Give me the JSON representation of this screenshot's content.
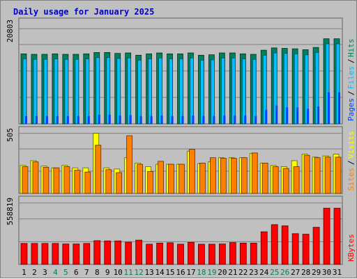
{
  "chart_data": {
    "type": "bar",
    "title": "Daily usage for January 2025",
    "days": [
      "1",
      "2",
      "3",
      "4",
      "5",
      "6",
      "7",
      "8",
      "9",
      "10",
      "11",
      "12",
      "13",
      "14",
      "15",
      "16",
      "17",
      "18",
      "19",
      "20",
      "21",
      "22",
      "23",
      "24",
      "25",
      "26",
      "27",
      "28",
      "29",
      "30",
      "31"
    ],
    "weekend_days": [
      "4",
      "5",
      "11",
      "12",
      "18",
      "19",
      "25",
      "26"
    ],
    "panels": [
      {
        "id": "hits_files_pages",
        "ymax_label": "20803",
        "ymax": 20803,
        "series_labels": [
          "Pages",
          "Files",
          "Hits"
        ],
        "series": [
          {
            "name": "Hits",
            "values": [
              15300,
              15200,
              15200,
              15300,
              15200,
              15200,
              15300,
              15600,
              15600,
              15400,
              15500,
              15000,
              15300,
              15500,
              15300,
              15300,
              15500,
              15000,
              15100,
              15500,
              15500,
              15300,
              15200,
              16100,
              16600,
              16500,
              16400,
              16200,
              16700,
              18600,
              18600
            ]
          },
          {
            "name": "Files",
            "values": [
              14200,
              14100,
              14100,
              14200,
              14100,
              14100,
              14200,
              14500,
              14500,
              14300,
              14400,
              13900,
              14200,
              14400,
              14200,
              14200,
              14400,
              13900,
              14000,
              14400,
              14400,
              14200,
              14100,
              15000,
              15500,
              15400,
              15300,
              15100,
              15600,
              17500,
              17500
            ]
          },
          {
            "name": "Pages",
            "values": [
              1700,
              1700,
              1700,
              1700,
              1700,
              1700,
              1700,
              2000,
              2000,
              1800,
              1900,
              1700,
              1700,
              1800,
              1700,
              1700,
              1800,
              1700,
              1700,
              1800,
              1800,
              1800,
              1700,
              3100,
              4000,
              3600,
              3600,
              3300,
              3800,
              6900,
              6900
            ]
          }
        ]
      },
      {
        "id": "visits_sites",
        "ymax_label": "505",
        "ymax": 505,
        "series_labels": [
          "Sites",
          "Visits"
        ],
        "series": [
          {
            "name": "Visits",
            "values": [
              235,
              275,
              230,
              215,
              235,
              215,
              215,
              505,
              215,
              205,
              300,
              255,
              225,
              245,
              245,
              245,
              355,
              250,
              265,
              300,
              300,
              300,
              335,
              255,
              235,
              225,
              275,
              330,
              305,
              315,
              330
            ]
          },
          {
            "name": "Sites",
            "values": [
              225,
              265,
              220,
              215,
              225,
              195,
              180,
              405,
              200,
              175,
              485,
              245,
              185,
              270,
              245,
              245,
              370,
              255,
              300,
              295,
              295,
              300,
              340,
              255,
              225,
              210,
              225,
              320,
              300,
              305,
              305
            ]
          }
        ]
      },
      {
        "id": "kbytes",
        "ymax_label": "558819",
        "ymax": 558819,
        "series_labels": [
          "KBytes"
        ],
        "series": [
          {
            "name": "KBytes",
            "values": [
              191000,
              191000,
              191000,
              191000,
              186000,
              186000,
              191000,
              216000,
              214000,
              214000,
              203000,
              221000,
              184000,
              194000,
              197000,
              184000,
              201000,
              184000,
              184000,
              186000,
              199000,
              194000,
              194000,
              297000,
              362000,
              351000,
              280000,
              275000,
              338000,
              512000,
              512000
            ]
          }
        ]
      }
    ]
  },
  "colors": {
    "background": "#c0c0c0",
    "plot_bg": "#c0c0c0",
    "title": "#0000cc",
    "hits": "#00805c",
    "files": "#00c0ff",
    "pages": "#0040ff",
    "visits": "#ffff00",
    "sites": "#ff8000",
    "kbytes": "#ff0000",
    "weekend_label": "#00805c",
    "weekday_label": "#000000",
    "grid": "#808080"
  }
}
